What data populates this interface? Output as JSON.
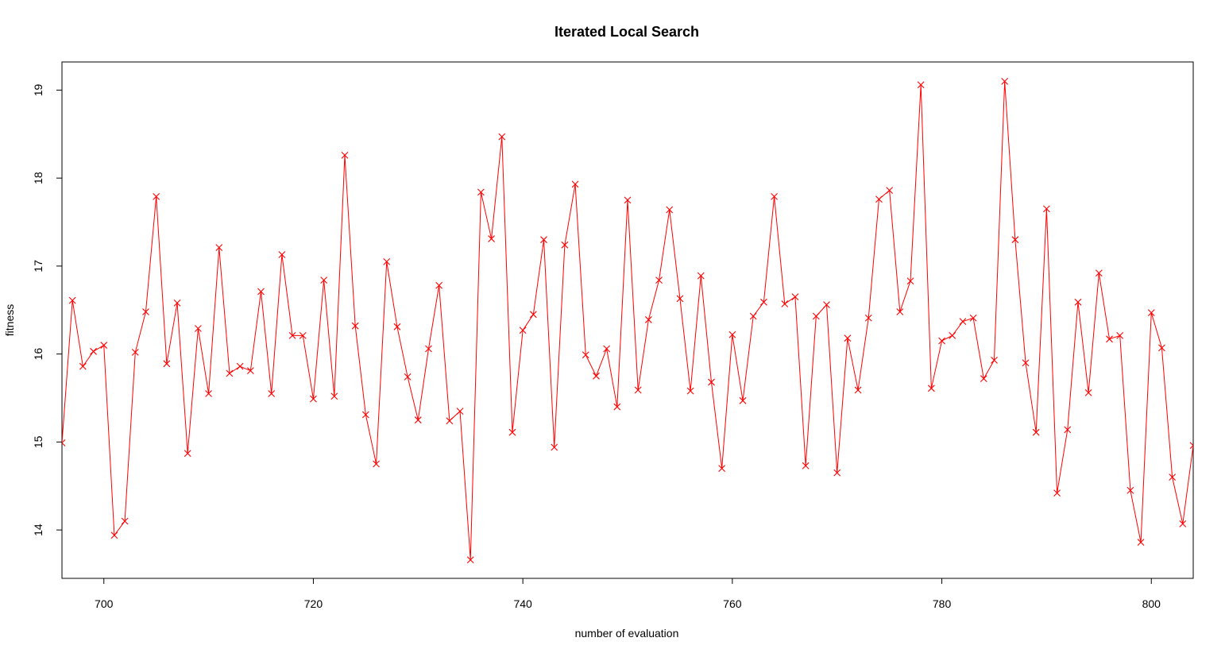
{
  "chart_data": {
    "type": "line",
    "title": "Iterated Local Search",
    "xlabel": "number of evaluation",
    "ylabel": "fitness",
    "xlim": [
      696,
      804
    ],
    "ylim": [
      13.45,
      19.32
    ],
    "x_ticks": [
      700,
      720,
      740,
      760,
      780,
      800
    ],
    "y_ticks": [
      14,
      15,
      16,
      17,
      18,
      19
    ],
    "grid": false,
    "legend": "none",
    "marker": "x",
    "colors": {
      "series": "#ff0000",
      "axis": "#000000"
    },
    "series": [
      {
        "x_start": 696,
        "values": [
          14.99,
          16.61,
          15.86,
          16.03,
          16.1,
          13.94,
          14.1,
          16.02,
          16.48,
          17.79,
          15.89,
          16.58,
          14.87,
          16.29,
          15.55,
          17.21,
          15.78,
          15.86,
          15.81,
          16.71,
          15.55,
          17.13,
          16.21,
          16.21,
          15.49,
          16.84,
          15.52,
          18.26,
          16.32,
          15.31,
          14.75,
          17.05,
          16.31,
          15.74,
          15.25,
          16.06,
          16.78,
          15.24,
          15.35,
          13.66,
          17.84,
          17.31,
          18.47,
          15.11,
          16.27,
          16.45,
          17.3,
          14.94,
          17.24,
          17.93,
          15.99,
          15.75,
          16.06,
          15.4,
          17.75,
          15.59,
          16.39,
          16.84,
          17.64,
          16.63,
          15.58,
          16.89,
          15.68,
          14.7,
          16.22,
          15.47,
          16.43,
          16.59,
          17.79,
          16.57,
          16.65,
          14.73,
          16.43,
          16.56,
          14.65,
          16.18,
          15.59,
          16.41,
          17.76,
          17.86,
          16.48,
          16.83,
          19.06,
          15.61,
          16.15,
          16.21,
          16.37,
          16.41,
          15.72,
          15.93,
          19.1,
          17.3,
          15.9,
          15.11,
          17.65,
          14.42,
          15.14,
          16.59,
          15.56,
          16.92,
          16.17,
          16.21,
          14.45,
          13.86,
          16.47,
          16.07,
          14.6,
          14.07,
          14.96
        ]
      }
    ]
  }
}
